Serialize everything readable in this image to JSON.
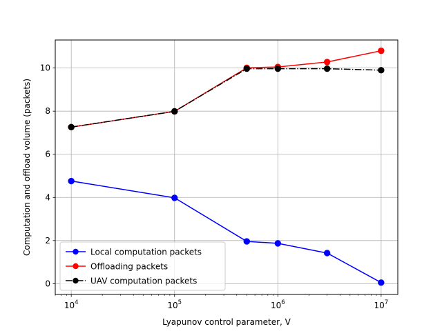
{
  "chart_data": {
    "type": "line",
    "xlabel": "Lyapunov control parameter, V",
    "ylabel": "Computation and offload volume (packets)",
    "xscale": "log",
    "xlim": [
      7000,
      14500000
    ],
    "ylim": [
      -0.5,
      11.3
    ],
    "x_major_ticks": [
      10000,
      100000,
      1000000,
      10000000
    ],
    "x_tick_labels": [
      {
        "base": "10",
        "exp": "4"
      },
      {
        "base": "10",
        "exp": "5"
      },
      {
        "base": "10",
        "exp": "6"
      },
      {
        "base": "10",
        "exp": "7"
      }
    ],
    "y_ticks": [
      0,
      2,
      4,
      6,
      8,
      10
    ],
    "y_tick_labels": [
      "0",
      "2",
      "4",
      "6",
      "8",
      "10"
    ],
    "grid": true,
    "legend_position": "lower-left",
    "x": [
      10000,
      100000,
      500000,
      1000000,
      3000000,
      10000000
    ],
    "series": [
      {
        "name": "Local computation packets",
        "color": "#0000ff",
        "linestyle": "solid",
        "marker": "circle",
        "values": [
          4.76,
          3.98,
          1.96,
          1.87,
          1.42,
          0.05
        ]
      },
      {
        "name": "Offloading packets",
        "color": "#ff0000",
        "linestyle": "solid",
        "marker": "circle",
        "values": [
          7.26,
          7.99,
          10.01,
          10.05,
          10.28,
          10.8
        ]
      },
      {
        "name": "UAV computation packets",
        "color": "#000000",
        "linestyle": "dashdot",
        "marker": "circle",
        "values": [
          7.26,
          7.99,
          9.97,
          9.97,
          9.97,
          9.9
        ]
      }
    ]
  }
}
